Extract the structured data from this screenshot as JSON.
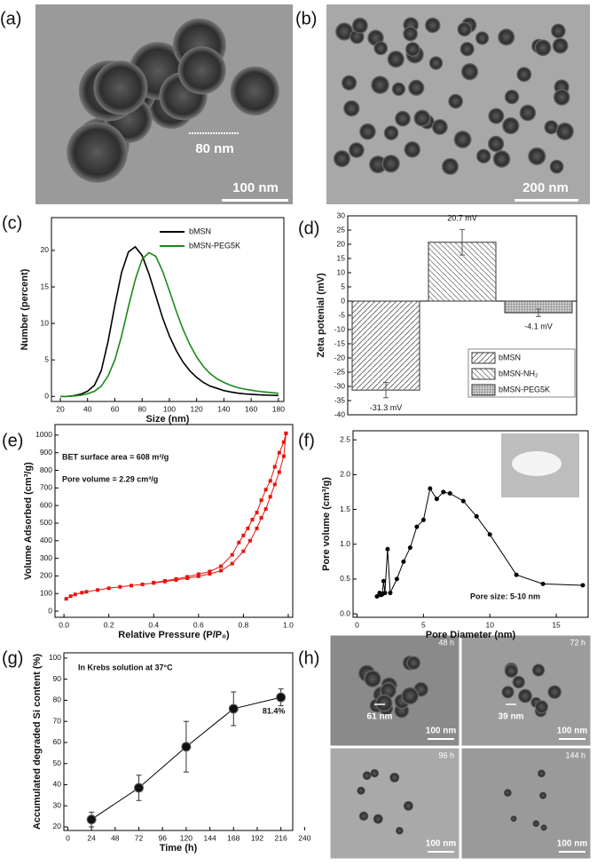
{
  "figure": {
    "panel_labels": [
      "(a)",
      "(b)",
      "(c)",
      "(d)",
      "(e)",
      "(f)",
      "(g)",
      "(h)"
    ]
  },
  "images": {
    "a": {
      "scale_bar": "100 nm",
      "annotation": "80 nm"
    },
    "b": {
      "scale_bar": "200 nm"
    },
    "h": {
      "tiles": [
        {
          "time": "48 h",
          "scale_bar": "100 nm",
          "annotation": "61 nm"
        },
        {
          "time": "72 h",
          "scale_bar": "100 nm",
          "annotation": "39 nm"
        },
        {
          "time": "96 h",
          "scale_bar": "100 nm"
        },
        {
          "time": "144 h",
          "scale_bar": "100 nm"
        }
      ]
    }
  },
  "chart_data": [
    {
      "type": "line",
      "xlabel": "Size (nm)",
      "ylabel": "Number (percent)",
      "xlim": [
        13.5,
        184
      ],
      "ylim": [
        -0.7,
        24.5
      ],
      "xticks": [
        20,
        40,
        60,
        80,
        100,
        120,
        140,
        160,
        180
      ],
      "yticks": [
        0,
        5,
        10,
        15,
        20
      ],
      "legend": "upper right",
      "x": [
        20,
        25,
        30,
        35,
        40,
        45,
        50,
        55,
        60,
        65,
        70,
        75,
        80,
        85,
        90,
        95,
        100,
        105,
        110,
        115,
        120,
        125,
        130,
        135,
        140,
        145,
        150,
        155,
        160,
        165,
        170,
        175,
        180
      ],
      "series": [
        {
          "name": "bMSN",
          "color": "#000000",
          "values": [
            0,
            0,
            0.1,
            0.3,
            0.7,
            1.5,
            3.5,
            7.5,
            12.5,
            17,
            19.8,
            20.5,
            19.3,
            16.8,
            13.8,
            10.8,
            8.3,
            6.3,
            4.7,
            3.5,
            2.6,
            1.9,
            1.4,
            1.1,
            0.8,
            0.6,
            0.45,
            0.35,
            0.28,
            0.22,
            0.18,
            0.15,
            0.12
          ]
        },
        {
          "name": "bMSN-PEG5K",
          "color": "#1a8a1a",
          "values": [
            0,
            0,
            0.05,
            0.15,
            0.35,
            0.7,
            1.4,
            2.8,
            5,
            8.3,
            12.3,
            16,
            18.8,
            19.7,
            19.2,
            17.2,
            14.5,
            11.7,
            9.2,
            7.1,
            5.4,
            4.1,
            3.1,
            2.4,
            1.9,
            1.5,
            1.2,
            1,
            0.85,
            0.7,
            0.6,
            0.5,
            0.42
          ]
        }
      ]
    },
    {
      "type": "bar",
      "ylabel": "Zeta potenial (mV)",
      "ylim": [
        -40,
        30
      ],
      "yticks": [
        -40,
        -35,
        -30,
        -25,
        -20,
        -15,
        -10,
        -5,
        0,
        5,
        10,
        15,
        20,
        25,
        30
      ],
      "legend": "lower right",
      "color": "#333333",
      "categories": [
        "bMSN",
        "bMSN-NH₂",
        "bMSN-PEG5K"
      ],
      "values": [
        -31.3,
        20.7,
        -4.1
      ],
      "errors": [
        2.7,
        4.5,
        1.3
      ],
      "value_labels": [
        "-31.3 mV",
        "20.7 mV",
        "-4.1 mV"
      ]
    },
    {
      "type": "line",
      "xlabel": "Relative Pressure (P/P₀)",
      "ylabel": "Volume Adsorbed (cm³/g)",
      "xlim": [
        -0.04,
        1.02
      ],
      "ylim": [
        -35,
        1060
      ],
      "xticks": [
        {
          "value": 0,
          "label": "0.0"
        },
        0.2,
        0.4,
        0.6,
        0.8,
        {
          "value": 1,
          "label": "1.0"
        }
      ],
      "yticks": [
        0,
        100,
        200,
        300,
        400,
        500,
        600,
        700,
        800,
        900,
        1000
      ],
      "marker": "square",
      "annotations": [
        "BET surface area = 608 m²/g",
        "Pore volume = 2.29 cm³/g"
      ],
      "annotation_color": "#e8150f",
      "series": [
        {
          "color": "#e8150f",
          "x": [
            0.01,
            0.03,
            0.05,
            0.08,
            0.1,
            0.15,
            0.2,
            0.25,
            0.3,
            0.35,
            0.4,
            0.45,
            0.5,
            0.55,
            0.6,
            0.65,
            0.7,
            0.75,
            0.8,
            0.83,
            0.86,
            0.88,
            0.9,
            0.92,
            0.94,
            0.96,
            0.98,
            0.99
          ],
          "values": [
            70,
            85,
            95,
            105,
            110,
            120,
            130,
            138,
            145,
            152,
            160,
            168,
            177,
            187,
            198,
            212,
            230,
            270,
            340,
            400,
            470,
            530,
            580,
            650,
            720,
            790,
            880,
            1010
          ]
        },
        {
          "color": "#e8150f",
          "x": [
            0.99,
            0.98,
            0.96,
            0.94,
            0.92,
            0.9,
            0.88,
            0.86,
            0.84,
            0.82,
            0.8,
            0.78,
            0.75,
            0.7,
            0.65,
            0.6,
            0.55,
            0.5,
            0.45,
            0.4
          ],
          "values": [
            1010,
            960,
            900,
            820,
            740,
            690,
            630,
            560,
            520,
            470,
            430,
            390,
            320,
            255,
            225,
            210,
            195,
            183,
            172,
            162
          ]
        }
      ]
    },
    {
      "type": "line",
      "xlabel": "Pore Diameter (nm)",
      "ylabel": "Pore volume (cm³/g)",
      "xlim": [
        -0.3,
        17.4
      ],
      "ylim": [
        -0.05,
        2.63
      ],
      "xticks": [
        0,
        5,
        10,
        15
      ],
      "yticks": [
        {
          "value": 0,
          "label": "0.0"
        },
        0.5,
        {
          "value": 1,
          "label": "1.0"
        },
        1.5,
        {
          "value": 2,
          "label": "2.0"
        },
        2.5
      ],
      "marker": "circle",
      "annotations": [
        "Pore size: 5-10 nm"
      ],
      "annotation_color": "#1010e0",
      "series": [
        {
          "color": "#000000",
          "x": [
            1.5,
            1.7,
            1.8,
            1.9,
            2.0,
            2.1,
            2.3,
            2.5,
            3,
            3.5,
            4,
            4.5,
            5,
            5.5,
            6,
            6.5,
            7,
            8,
            9,
            10,
            12,
            14,
            17
          ],
          "values": [
            0.25,
            0.3,
            0.27,
            0.28,
            0.47,
            0.3,
            0.93,
            0.3,
            0.5,
            0.75,
            0.95,
            1.25,
            1.35,
            1.8,
            1.65,
            1.75,
            1.73,
            1.62,
            1.4,
            1.14,
            0.56,
            0.43,
            0.41
          ]
        }
      ]
    },
    {
      "type": "line",
      "xlabel": "Time (h)",
      "ylabel": "Accumulated degraded Si content (%)",
      "xlim": [
        -4,
        228
      ],
      "ylim": [
        18.3,
        102.5
      ],
      "xticks": [
        0,
        24,
        48,
        72,
        96,
        120,
        144,
        168,
        192,
        216,
        240
      ],
      "yticks": [
        20,
        30,
        40,
        50,
        60,
        70,
        80,
        90,
        100
      ],
      "marker": "ball",
      "annotations": [
        "In Krebs solution at 37°C"
      ],
      "annotation_color": "#000000",
      "series": [
        {
          "color": "#000000",
          "x": [
            24,
            72,
            120,
            168,
            216
          ],
          "values": [
            23.5,
            38.5,
            58,
            76,
            81.4
          ],
          "errors": [
            3.5,
            6,
            12,
            8,
            4
          ],
          "value_labels": [
            null,
            null,
            null,
            null,
            "81.4%"
          ]
        }
      ]
    }
  ]
}
